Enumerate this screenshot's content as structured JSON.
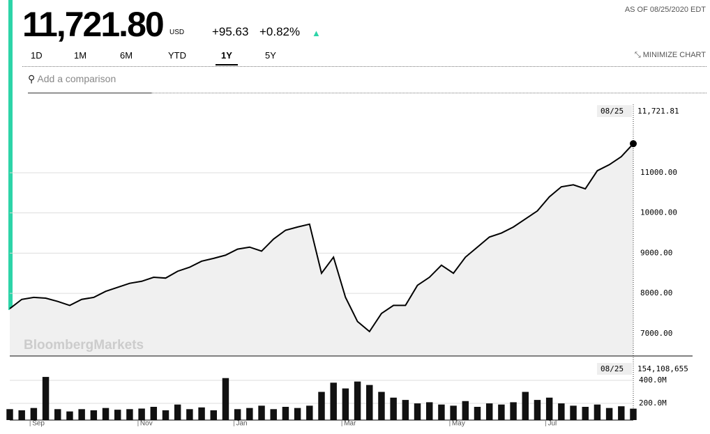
{
  "header": {
    "price": "11,721.80",
    "currency": "USD",
    "change": "+95.63",
    "change_pct": "+0.82%",
    "as_of": "AS OF 08/25/2020 EDT",
    "ranges": [
      "1D",
      "1M",
      "6M",
      "YTD",
      "1Y",
      "5Y"
    ],
    "active_range": "1Y",
    "minimize": "MINIMIZE CHART",
    "search_placeholder": "Add a comparison",
    "watermark": "BloombergMarkets"
  },
  "chart_data": [
    {
      "type": "line",
      "color": "#000000",
      "last_date": "08/25",
      "categories": [
        null,
        "Sep",
        null,
        null,
        null,
        null,
        null,
        null,
        null,
        null,
        "Nov",
        null,
        null,
        null,
        null,
        null,
        null,
        null,
        "Jan",
        null,
        null,
        null,
        null,
        null,
        null,
        null,
        null,
        "Mar",
        null,
        null,
        null,
        null,
        null,
        null,
        null,
        null,
        "May",
        null,
        null,
        null,
        null,
        null,
        null,
        null,
        "Jul",
        null,
        null,
        null,
        null,
        null,
        null,
        null,
        null
      ],
      "values": [
        7620,
        7850,
        7900,
        7880,
        7800,
        7700,
        7850,
        7900,
        8050,
        8150,
        8250,
        8300,
        8400,
        8380,
        8550,
        8650,
        8800,
        8870,
        8950,
        9100,
        9150,
        9050,
        9350,
        9570,
        9650,
        9720,
        8500,
        8900,
        7900,
        7300,
        7050,
        7500,
        7700,
        7700,
        8200,
        8400,
        8700,
        8500,
        8900,
        9150,
        9400,
        9500,
        9650,
        9850,
        10050,
        10400,
        10650,
        10700,
        10600,
        11050,
        11200,
        11400,
        11721.81
      ],
      "value_labels": [
        null,
        null,
        null,
        null,
        null,
        null,
        null,
        null,
        null,
        null,
        null,
        null,
        null,
        null,
        null,
        null,
        null,
        null,
        null,
        null,
        null,
        null,
        null,
        null,
        null,
        null,
        null,
        null,
        null,
        null,
        null,
        null,
        null,
        null,
        null,
        null,
        null,
        null,
        null,
        null,
        null,
        null,
        null,
        null,
        null,
        null,
        null,
        null,
        null,
        null,
        null,
        null,
        "11,721.81"
      ],
      "ylim": [
        6460,
        12870
      ],
      "yticks": [
        {
          "value": 7000,
          "label": "7000.00"
        },
        {
          "value": 8000,
          "label": "8000.00"
        },
        {
          "value": 9000,
          "label": "9000.00"
        },
        {
          "value": 10000,
          "label": "10000.00"
        },
        {
          "value": 11000,
          "label": "11000.00"
        }
      ],
      "grid": true
    },
    {
      "type": "bar",
      "color": "#111111",
      "last_date": "08/25",
      "values": [
        150000000,
        140000000,
        160000000,
        430000000,
        150000000,
        130000000,
        150000000,
        140000000,
        160000000,
        145000000,
        150000000,
        155000000,
        170000000,
        140000000,
        190000000,
        150000000,
        165000000,
        140000000,
        420000000,
        150000000,
        160000000,
        180000000,
        150000000,
        170000000,
        160000000,
        180000000,
        300000000,
        380000000,
        330000000,
        390000000,
        360000000,
        300000000,
        250000000,
        230000000,
        200000000,
        210000000,
        190000000,
        180000000,
        220000000,
        170000000,
        200000000,
        190000000,
        210000000,
        300000000,
        230000000,
        250000000,
        200000000,
        180000000,
        170000000,
        190000000,
        160000000,
        175000000,
        154108655
      ],
      "value_labels": [
        null,
        null,
        null,
        null,
        null,
        null,
        null,
        null,
        null,
        null,
        null,
        null,
        null,
        null,
        null,
        null,
        null,
        null,
        null,
        null,
        null,
        null,
        null,
        null,
        null,
        null,
        null,
        null,
        null,
        null,
        null,
        null,
        null,
        null,
        null,
        null,
        null,
        null,
        null,
        null,
        null,
        null,
        null,
        null,
        null,
        null,
        null,
        null,
        null,
        null,
        null,
        null,
        "154,108,655"
      ],
      "ylim": [
        55000000,
        606000000
      ],
      "yticks": [
        {
          "value": 200000000,
          "label": "200.0M"
        },
        {
          "value": 400000000,
          "label": "400.0M"
        }
      ],
      "grid": true
    }
  ]
}
